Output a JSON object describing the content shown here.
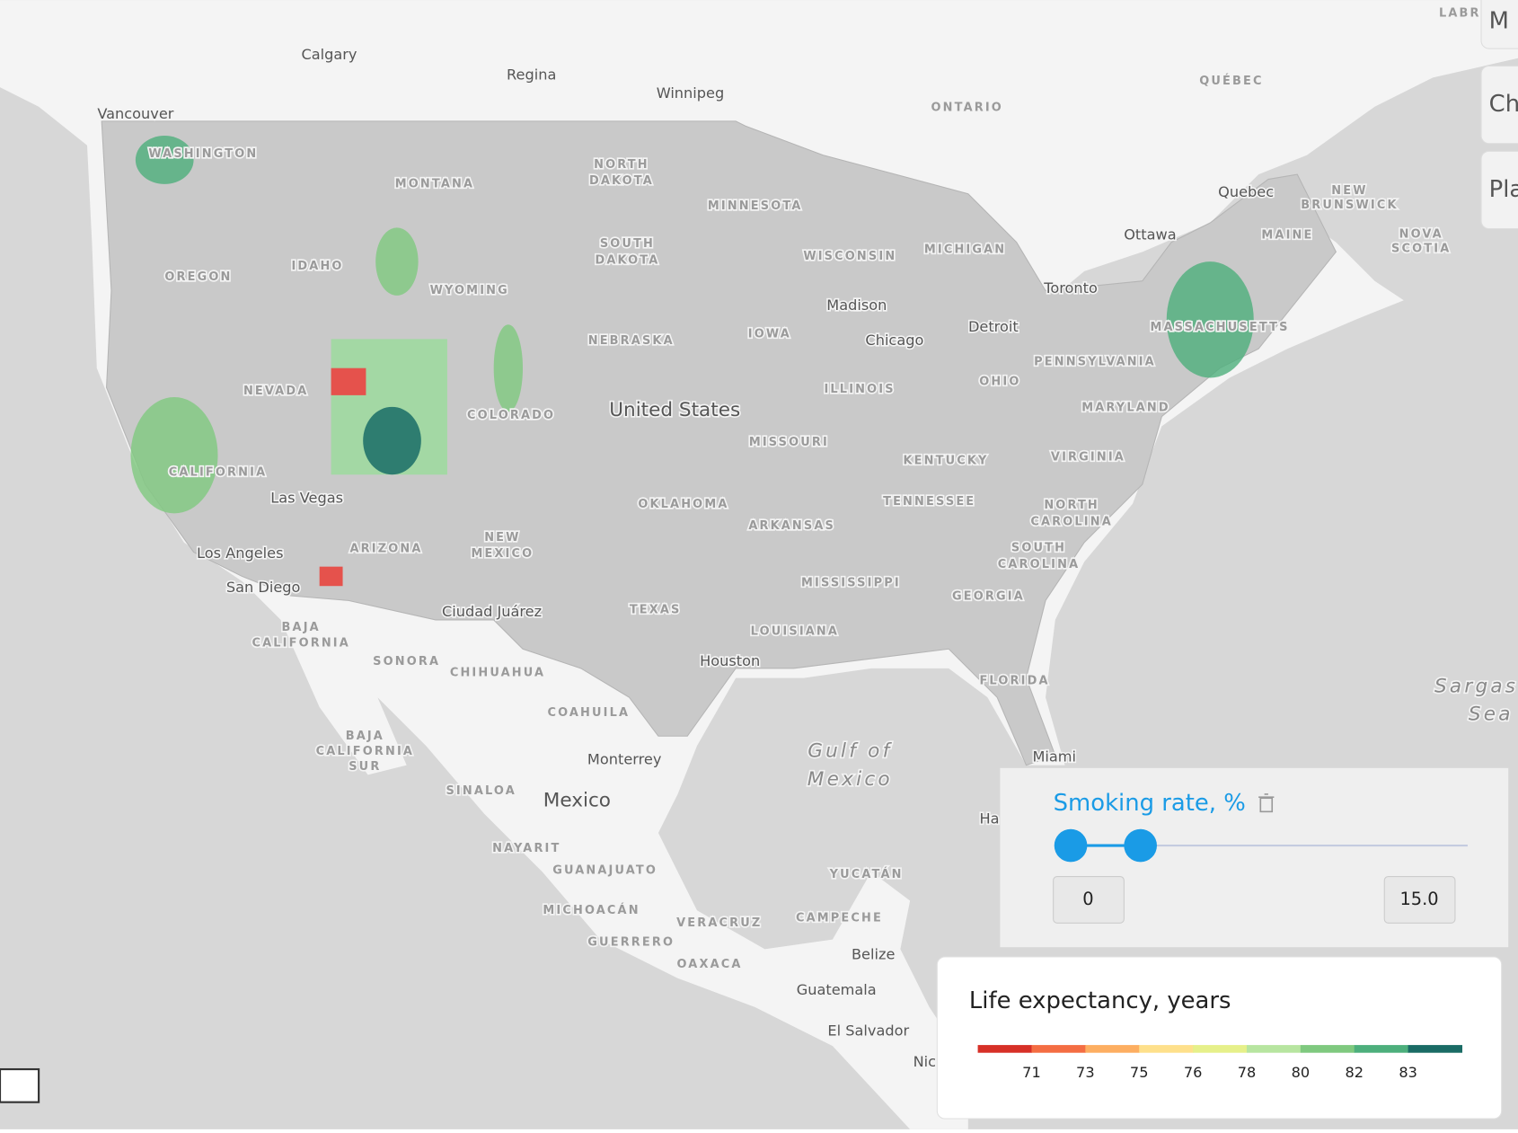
{
  "map": {
    "labels": [
      {
        "text": "Calgary",
        "kind": "city"
      },
      {
        "text": "Regina",
        "kind": "city"
      },
      {
        "text": "Winnipeg",
        "kind": "city"
      },
      {
        "text": "Vancouver",
        "kind": "city"
      },
      {
        "text": "ONTARIO",
        "kind": "region"
      },
      {
        "text": "QUÉBEC",
        "kind": "region"
      },
      {
        "text": "Quebec",
        "kind": "city"
      },
      {
        "text": "NEW",
        "kind": "region"
      },
      {
        "text": "BRUNSWICK",
        "kind": "region"
      },
      {
        "text": "Ottawa",
        "kind": "city"
      },
      {
        "text": "NOVA",
        "kind": "region"
      },
      {
        "text": "SCOTIA",
        "kind": "region"
      },
      {
        "text": "MAINE",
        "kind": "region"
      },
      {
        "text": "Toronto",
        "kind": "city"
      },
      {
        "text": "Detroit",
        "kind": "city"
      },
      {
        "text": "Madison",
        "kind": "city"
      },
      {
        "text": "Chicago",
        "kind": "city"
      },
      {
        "text": "WISCONSIN",
        "kind": "region"
      },
      {
        "text": "MICHIGAN",
        "kind": "region"
      },
      {
        "text": "MINNESOTA",
        "kind": "region"
      },
      {
        "text": "NORTH",
        "kind": "region"
      },
      {
        "text": "DAKOTA",
        "kind": "region"
      },
      {
        "text": "SOUTH",
        "kind": "region"
      },
      {
        "text": "DAKOTA",
        "kind": "region"
      },
      {
        "text": "MONTANA",
        "kind": "region"
      },
      {
        "text": "WASHINGTON",
        "kind": "region"
      },
      {
        "text": "OREGON",
        "kind": "region"
      },
      {
        "text": "IDAHO",
        "kind": "region"
      },
      {
        "text": "WYOMING",
        "kind": "region"
      },
      {
        "text": "NEBRASKA",
        "kind": "region"
      },
      {
        "text": "IOWA",
        "kind": "region"
      },
      {
        "text": "ILLINOIS",
        "kind": "region"
      },
      {
        "text": "OHIO",
        "kind": "region"
      },
      {
        "text": "PENNSYLVANIA",
        "kind": "region"
      },
      {
        "text": "MASSACHUSETTS",
        "kind": "region"
      },
      {
        "text": "NEVADA",
        "kind": "region"
      },
      {
        "text": "COLORADO",
        "kind": "region"
      },
      {
        "text": "United States",
        "kind": "country"
      },
      {
        "text": "MISSOURI",
        "kind": "region"
      },
      {
        "text": "KENTUCKY",
        "kind": "region"
      },
      {
        "text": "VIRGINIA",
        "kind": "region"
      },
      {
        "text": "MARYLAND",
        "kind": "region"
      },
      {
        "text": "CALIFORNIA",
        "kind": "region"
      },
      {
        "text": "Las Vegas",
        "kind": "city"
      },
      {
        "text": "OKLAHOMA",
        "kind": "region"
      },
      {
        "text": "TENNESSEE",
        "kind": "region"
      },
      {
        "text": "NORTH",
        "kind": "region"
      },
      {
        "text": "CAROLINA",
        "kind": "region"
      },
      {
        "text": "ARKANSAS",
        "kind": "region"
      },
      {
        "text": "SOUTH",
        "kind": "region"
      },
      {
        "text": "CAROLINA",
        "kind": "region"
      },
      {
        "text": "ARIZONA",
        "kind": "region"
      },
      {
        "text": "NEW",
        "kind": "region"
      },
      {
        "text": "MEXICO",
        "kind": "region"
      },
      {
        "text": "Los Angeles",
        "kind": "city"
      },
      {
        "text": "MISSISSIPPI",
        "kind": "region"
      },
      {
        "text": "GEORGIA",
        "kind": "region"
      },
      {
        "text": "San Diego",
        "kind": "city"
      },
      {
        "text": "Ciudad Juárez",
        "kind": "city"
      },
      {
        "text": "TEXAS",
        "kind": "region"
      },
      {
        "text": "LOUISIANA",
        "kind": "region"
      },
      {
        "text": "BAJA",
        "kind": "region"
      },
      {
        "text": "CALIFORNIA",
        "kind": "region"
      },
      {
        "text": "SONORA",
        "kind": "region"
      },
      {
        "text": "CHIHUAHUA",
        "kind": "region"
      },
      {
        "text": "Houston",
        "kind": "city"
      },
      {
        "text": "FLORIDA",
        "kind": "region"
      },
      {
        "text": "COAHUILA",
        "kind": "region"
      },
      {
        "text": "Gulf of",
        "kind": "sea"
      },
      {
        "text": "Mexico",
        "kind": "sea"
      },
      {
        "text": "Monterrey",
        "kind": "city"
      },
      {
        "text": "Miami",
        "kind": "city"
      },
      {
        "text": "Sargas",
        "kind": "sea"
      },
      {
        "text": "Sea",
        "kind": "sea"
      },
      {
        "text": "SINALOA",
        "kind": "region"
      },
      {
        "text": "Mexico",
        "kind": "country"
      },
      {
        "text": "BAJA",
        "kind": "region"
      },
      {
        "text": "CALIFORNIA",
        "kind": "region"
      },
      {
        "text": "SUR",
        "kind": "region"
      },
      {
        "text": "NAYARIT",
        "kind": "region"
      },
      {
        "text": "GUANAJUATO",
        "kind": "region"
      },
      {
        "text": "YUCATÁN",
        "kind": "region"
      },
      {
        "text": "MICHOACÁN",
        "kind": "region"
      },
      {
        "text": "VERACRUZ",
        "kind": "region"
      },
      {
        "text": "CAMPECHE",
        "kind": "region"
      },
      {
        "text": "GUERRERO",
        "kind": "region"
      },
      {
        "text": "OAXACA",
        "kind": "region"
      },
      {
        "text": "Belize",
        "kind": "city"
      },
      {
        "text": "Guatemala",
        "kind": "city"
      },
      {
        "text": "El Salvador",
        "kind": "city"
      },
      {
        "text": "Ha",
        "kind": "city"
      },
      {
        "text": "Nic",
        "kind": "city"
      },
      {
        "text": "LABR",
        "kind": "region"
      }
    ]
  },
  "side_buttons": [
    "M",
    "Ch",
    "Pla"
  ],
  "filter": {
    "title": "Smoking rate, %",
    "min_input": "0",
    "max_input": "15.0"
  },
  "legend": {
    "title": "Life expectancy, years",
    "colors": [
      "#d73027",
      "#f46d43",
      "#fdae61",
      "#fee08b",
      "#e6f08a",
      "#b7e5a0",
      "#7fc97f",
      "#4daf7c",
      "#1a6b65"
    ],
    "ticks": [
      "71",
      "73",
      "75",
      "76",
      "78",
      "80",
      "82",
      "83"
    ]
  }
}
